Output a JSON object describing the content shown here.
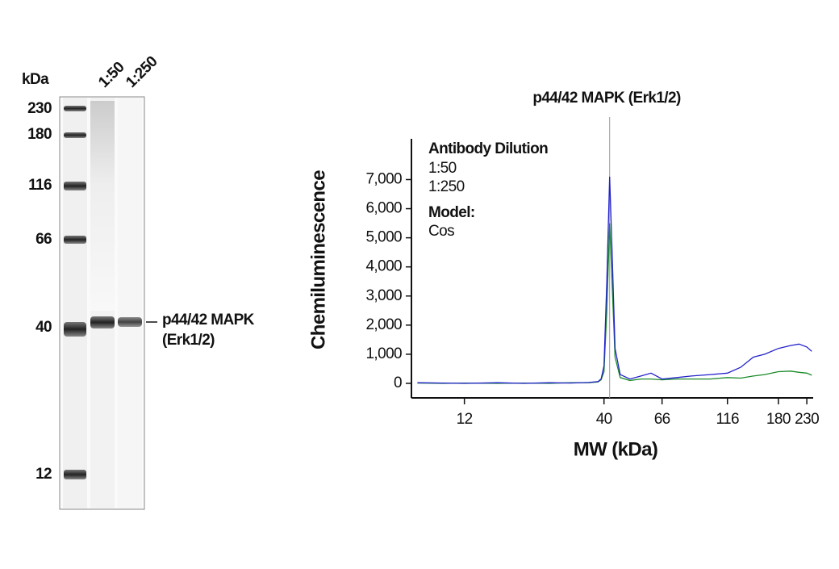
{
  "blot": {
    "unit_label": "kDa",
    "lanes": [
      "1:50",
      "1:250"
    ],
    "markers": [
      "230",
      "180",
      "116",
      "66",
      "40",
      "12"
    ],
    "band_label": [
      "p44/42 MAPK",
      "(Erk1/2)"
    ]
  },
  "chart_data": {
    "type": "line",
    "title": "p44/42 MAPK (Erk1/2)",
    "x_label": "MW (kDa)",
    "y_label": "Chemiluminescence",
    "legend_title": "Antibody Dilution",
    "model_label": "Model:",
    "model": "Cos",
    "xscale": "log",
    "xlim": [
      7.6,
      243
    ],
    "xticks": [
      12,
      40,
      66,
      116,
      180,
      230
    ],
    "ylim": [
      -500,
      8400
    ],
    "yticks": [
      0,
      {
        "value": 1000,
        "label": "1,000"
      },
      {
        "value": 2000,
        "label": "2,000"
      },
      {
        "value": 3000,
        "label": "3,000"
      },
      {
        "value": 4000,
        "label": "4,000"
      },
      {
        "value": 5000,
        "label": "5,000"
      },
      {
        "value": 6000,
        "label": "6,000"
      },
      {
        "value": 7000,
        "label": "7,000"
      }
    ],
    "x": [
      8,
      10,
      12,
      16,
      20,
      25,
      30,
      35,
      38,
      39,
      40,
      41,
      42,
      43,
      44,
      46,
      50,
      55,
      60,
      66,
      75,
      85,
      100,
      116,
      130,
      145,
      160,
      180,
      200,
      215,
      230,
      240
    ],
    "series": [
      {
        "name": "1:50",
        "color": "#2222cc",
        "values": [
          20,
          10,
          0,
          20,
          0,
          20,
          10,
          30,
          60,
          150,
          600,
          3500,
          7100,
          4200,
          1200,
          300,
          150,
          250,
          350,
          150,
          200,
          250,
          300,
          350,
          550,
          900,
          1000,
          1200,
          1300,
          1350,
          1250,
          1100
        ]
      },
      {
        "name": "1:250",
        "color": "#1a8a2a",
        "values": [
          10,
          0,
          10,
          0,
          10,
          0,
          20,
          20,
          50,
          120,
          400,
          2500,
          5500,
          3200,
          900,
          200,
          100,
          150,
          150,
          120,
          150,
          150,
          150,
          200,
          180,
          250,
          300,
          400,
          420,
          380,
          350,
          280
        ]
      }
    ]
  }
}
